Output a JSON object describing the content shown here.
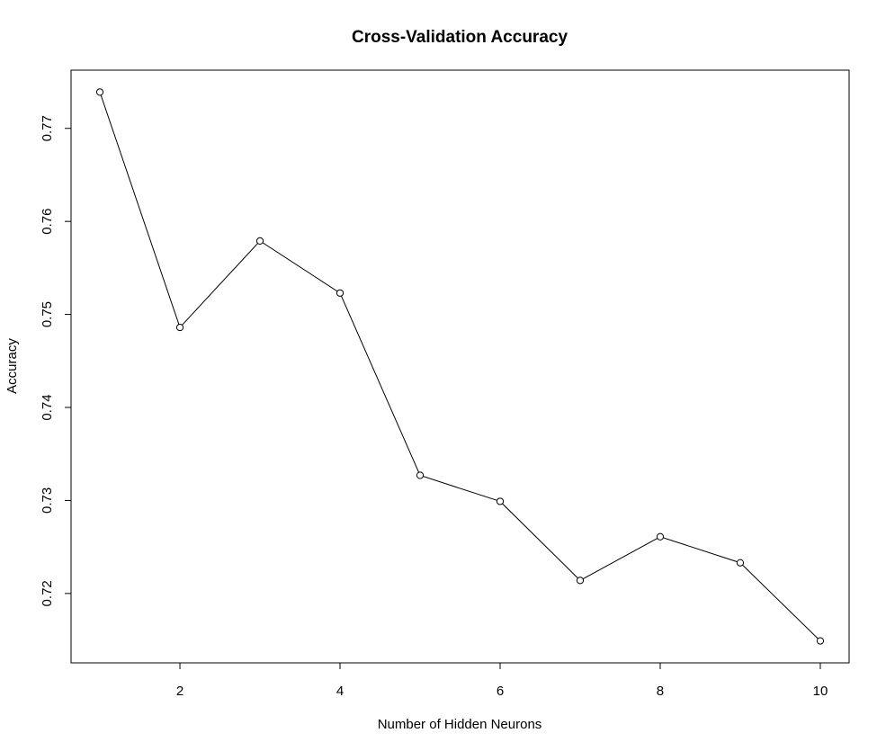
{
  "chart_data": {
    "type": "line",
    "title": "Cross-Validation Accuracy",
    "xlabel": "Number of Hidden Neurons",
    "ylabel": "Accuracy",
    "x": [
      1,
      2,
      3,
      4,
      5,
      6,
      7,
      8,
      9,
      10
    ],
    "series": [
      {
        "values": [
          0.7739,
          0.7486,
          0.7579,
          0.7523,
          0.7327,
          0.7299,
          0.7214,
          0.7261,
          0.7233,
          0.7149
        ]
      }
    ],
    "xticks": [
      2,
      4,
      6,
      8,
      10
    ],
    "xtick_labels": [
      "2",
      "4",
      "6",
      "8",
      "10"
    ],
    "yticks": [
      0.72,
      0.73,
      0.74,
      0.75,
      0.76,
      0.77
    ],
    "ytick_labels": [
      "0.72",
      "0.73",
      "0.74",
      "0.75",
      "0.76",
      "0.77"
    ],
    "xlim": [
      0.64,
      10.36
    ],
    "ylim": [
      0.71254,
      0.77626
    ],
    "markers": "open-circle",
    "line_color": "#000000",
    "grid": false,
    "legend": "none"
  }
}
